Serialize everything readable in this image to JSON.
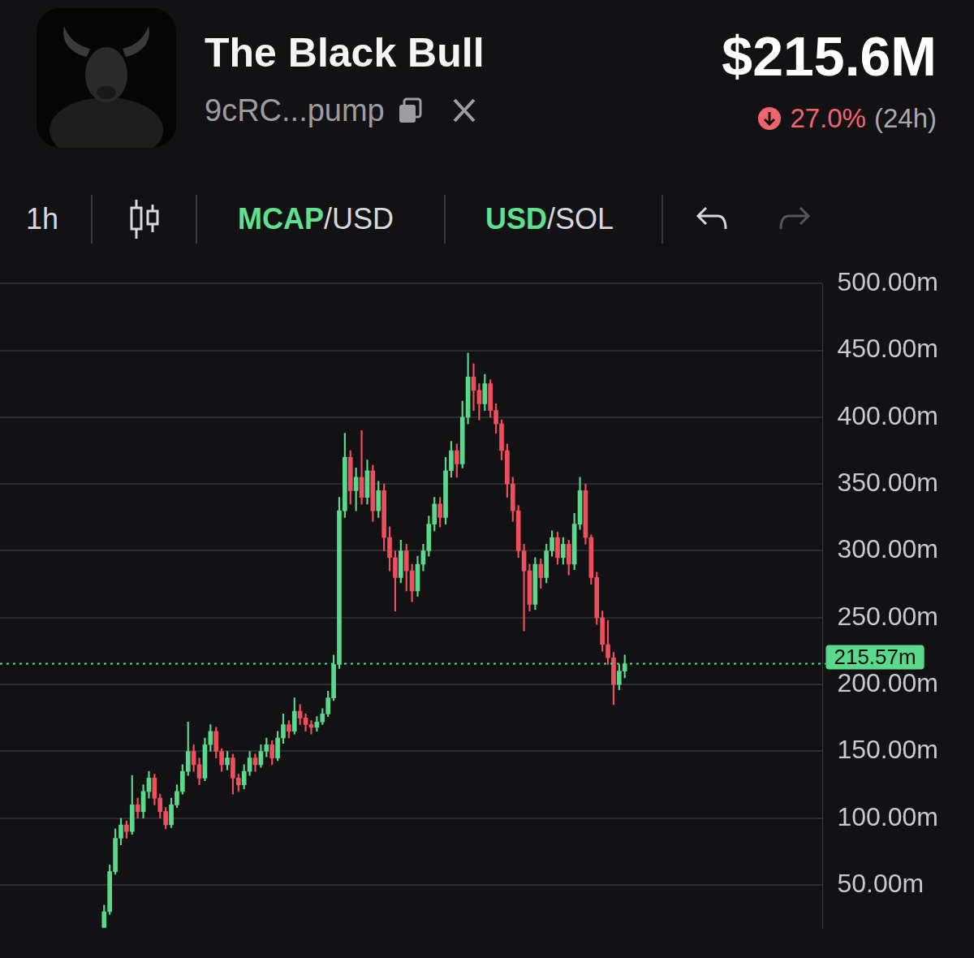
{
  "header": {
    "title": "The Black Bull",
    "address": "9cRC...pump",
    "value": "$215.6M",
    "change": "27.0%",
    "period": "(24h)"
  },
  "toolbar": {
    "interval": "1h",
    "toggles": [
      [
        "MCAP",
        "/USD"
      ],
      [
        "USD",
        "/SOL"
      ]
    ]
  },
  "chart_data": {
    "type": "candlestick",
    "ohlc": [
      [
        18,
        35,
        18,
        30
      ],
      [
        30,
        65,
        28,
        60
      ],
      [
        60,
        92,
        58,
        85
      ],
      [
        85,
        100,
        80,
        95
      ],
      [
        95,
        98,
        85,
        90
      ],
      [
        90,
        132,
        88,
        110
      ],
      [
        110,
        115,
        100,
        105
      ],
      [
        105,
        125,
        100,
        120
      ],
      [
        120,
        135,
        115,
        130
      ],
      [
        130,
        133,
        110,
        115
      ],
      [
        115,
        118,
        100,
        105
      ],
      [
        105,
        108,
        92,
        95
      ],
      [
        95,
        115,
        93,
        110
      ],
      [
        110,
        125,
        108,
        120
      ],
      [
        120,
        140,
        118,
        135
      ],
      [
        135,
        172,
        132,
        150
      ],
      [
        150,
        155,
        135,
        140
      ],
      [
        140,
        145,
        125,
        130
      ],
      [
        130,
        160,
        128,
        155
      ],
      [
        155,
        170,
        150,
        165
      ],
      [
        165,
        168,
        145,
        150
      ],
      [
        150,
        152,
        135,
        140
      ],
      [
        140,
        150,
        136,
        145
      ],
      [
        145,
        148,
        118,
        130
      ],
      [
        130,
        133,
        120,
        125
      ],
      [
        125,
        140,
        122,
        135
      ],
      [
        135,
        150,
        132,
        145
      ],
      [
        145,
        148,
        135,
        140
      ],
      [
        140,
        155,
        138,
        150
      ],
      [
        150,
        160,
        146,
        155
      ],
      [
        155,
        158,
        140,
        145
      ],
      [
        145,
        165,
        143,
        160
      ],
      [
        160,
        178,
        156,
        170
      ],
      [
        170,
        173,
        160,
        165
      ],
      [
        165,
        190,
        163,
        180
      ],
      [
        180,
        185,
        170,
        175
      ],
      [
        175,
        178,
        165,
        170
      ],
      [
        170,
        173,
        163,
        168
      ],
      [
        168,
        176,
        165,
        172
      ],
      [
        172,
        182,
        170,
        178
      ],
      [
        178,
        195,
        176,
        190
      ],
      [
        190,
        222,
        188,
        215
      ],
      [
        215,
        340,
        212,
        330
      ],
      [
        330,
        388,
        325,
        370
      ],
      [
        370,
        375,
        335,
        345
      ],
      [
        345,
        362,
        330,
        355
      ],
      [
        355,
        390,
        335,
        340
      ],
      [
        340,
        368,
        335,
        360
      ],
      [
        360,
        364,
        322,
        330
      ],
      [
        330,
        352,
        325,
        345
      ],
      [
        345,
        350,
        300,
        310
      ],
      [
        310,
        318,
        285,
        295
      ],
      [
        295,
        300,
        255,
        280
      ],
      [
        280,
        308,
        276,
        300
      ],
      [
        300,
        305,
        270,
        285
      ],
      [
        285,
        290,
        262,
        270
      ],
      [
        270,
        296,
        266,
        290
      ],
      [
        290,
        305,
        285,
        300
      ],
      [
        300,
        326,
        296,
        320
      ],
      [
        320,
        340,
        315,
        335
      ],
      [
        335,
        340,
        318,
        325
      ],
      [
        325,
        370,
        320,
        360
      ],
      [
        360,
        382,
        355,
        375
      ],
      [
        375,
        380,
        355,
        365
      ],
      [
        365,
        412,
        362,
        400
      ],
      [
        400,
        448,
        395,
        430
      ],
      [
        430,
        440,
        405,
        420
      ],
      [
        420,
        425,
        398,
        410
      ],
      [
        410,
        432,
        405,
        425
      ],
      [
        425,
        428,
        400,
        405
      ],
      [
        405,
        410,
        388,
        395
      ],
      [
        395,
        398,
        368,
        375
      ],
      [
        375,
        380,
        340,
        350
      ],
      [
        350,
        355,
        322,
        330
      ],
      [
        330,
        334,
        295,
        300
      ],
      [
        300,
        305,
        240,
        285
      ],
      [
        285,
        290,
        255,
        260
      ],
      [
        260,
        295,
        256,
        290
      ],
      [
        290,
        294,
        272,
        280
      ],
      [
        280,
        305,
        276,
        300
      ],
      [
        300,
        315,
        296,
        310
      ],
      [
        310,
        314,
        290,
        295
      ],
      [
        295,
        310,
        290,
        305
      ],
      [
        305,
        308,
        282,
        290
      ],
      [
        290,
        328,
        286,
        320
      ],
      [
        320,
        355,
        316,
        345
      ],
      [
        345,
        350,
        305,
        310
      ],
      [
        310,
        312,
        275,
        280
      ],
      [
        280,
        284,
        245,
        250
      ],
      [
        250,
        255,
        225,
        230
      ],
      [
        230,
        248,
        215,
        220
      ],
      [
        220,
        224,
        185,
        200
      ],
      [
        200,
        215,
        196,
        210
      ],
      [
        210,
        222,
        205,
        215.57
      ]
    ],
    "ylim": [
      18,
      500
    ],
    "yticks": [
      {
        "value": 50,
        "label": "50.00m"
      },
      {
        "value": 100,
        "label": "100.00m"
      },
      {
        "value": 150,
        "label": "150.00m"
      },
      {
        "value": 200,
        "label": "200.00m"
      },
      {
        "value": 250,
        "label": "250.00m"
      },
      {
        "value": 300,
        "label": "300.00m"
      },
      {
        "value": 350,
        "label": "350.00m"
      },
      {
        "value": 400,
        "label": "400.00m"
      },
      {
        "value": 450,
        "label": "450.00m"
      },
      {
        "value": 500,
        "label": "500.00m"
      }
    ],
    "grid": true,
    "tick_labels": "y",
    "last_value": 215.57,
    "last_label": "215.57m"
  }
}
